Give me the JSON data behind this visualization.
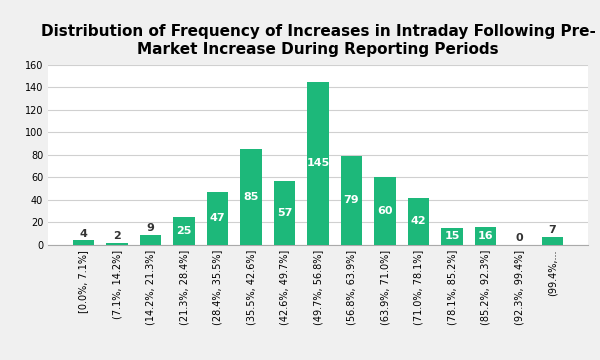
{
  "title": "Distribution of Frequency of Increases in Intraday Following Pre-\nMarket Increase During Reporting Periods",
  "categories": [
    "[0.0%, 7.1%]",
    "(7.1%, 14.2%]",
    "(14.2%, 21.3%]",
    "(21.3%, 28.4%]",
    "(28.4%, 35.5%]",
    "(35.5%, 42.6%]",
    "(42.6%, 49.7%]",
    "(49.7%, 56.8%]",
    "(56.8%, 63.9%]",
    "(63.9%, 71.0%]",
    "(71.0%, 78.1%]",
    "(78.1%, 85.2%]",
    "(85.2%, 92.3%]",
    "(92.3%, 99.4%]",
    "(99.4%,..."
  ],
  "values": [
    4,
    2,
    9,
    25,
    47,
    85,
    57,
    145,
    79,
    60,
    42,
    15,
    16,
    0,
    7
  ],
  "bar_color": "#1DB87A",
  "label_color_inside": "#ffffff",
  "label_color_outside": "#333333",
  "plot_bg_color": "#ffffff",
  "fig_bg_color": "#f0f0f0",
  "grid_color": "#d0d0d0",
  "ylim": [
    0,
    160
  ],
  "yticks": [
    0,
    20,
    40,
    60,
    80,
    100,
    120,
    140,
    160
  ],
  "title_fontsize": 11,
  "label_fontsize": 8,
  "tick_fontsize": 7,
  "bar_width": 0.65,
  "small_bar_threshold": 15
}
